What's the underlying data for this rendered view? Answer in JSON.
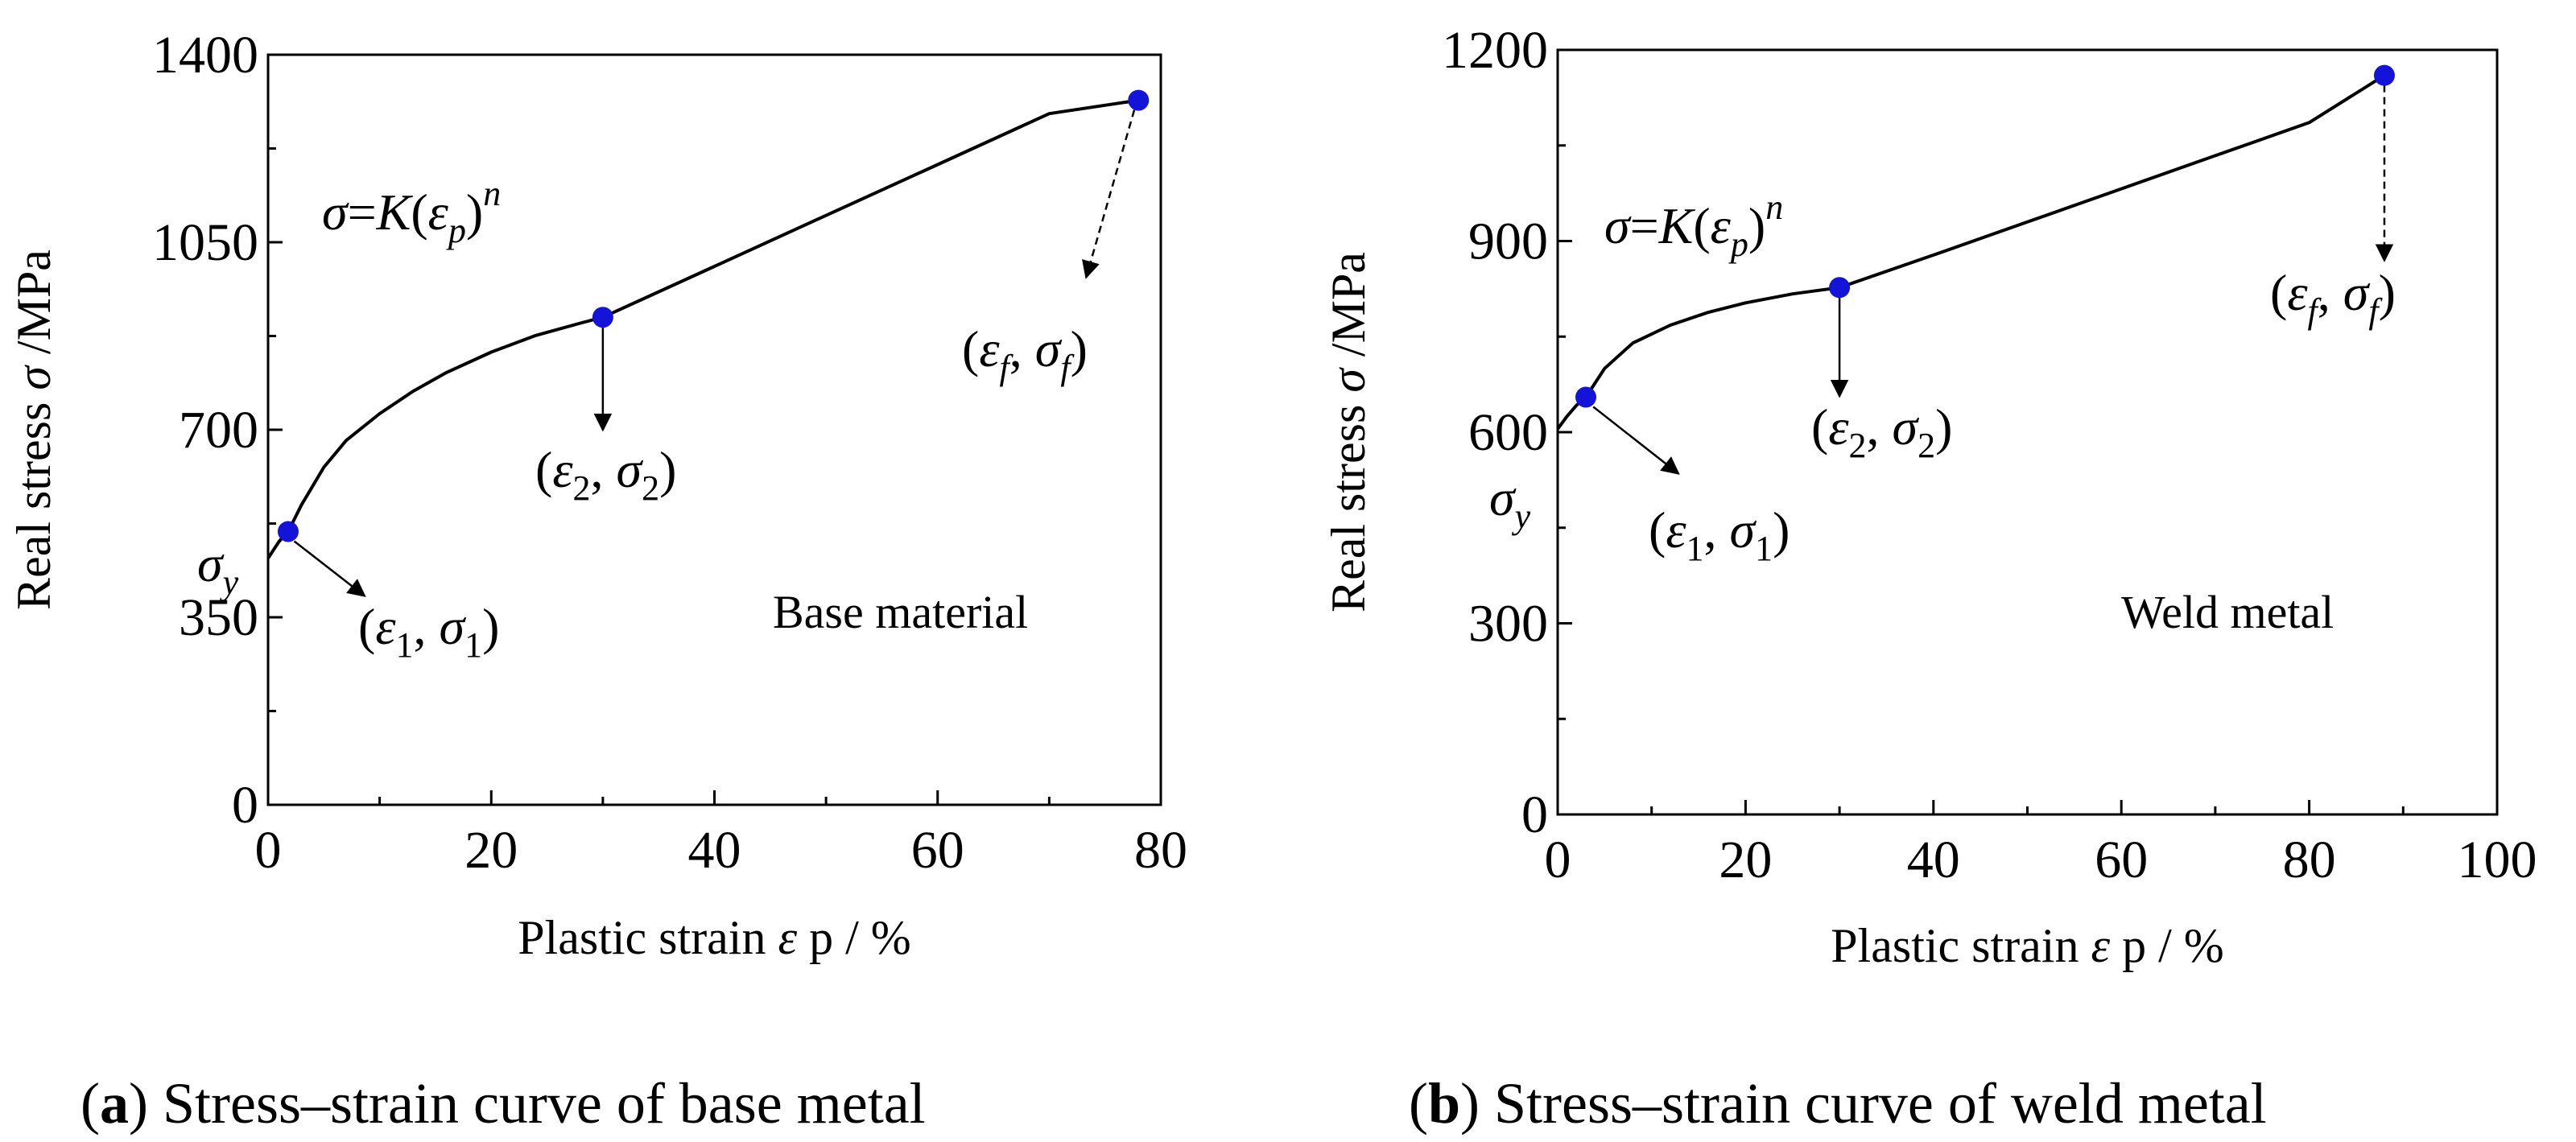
{
  "chart_data": [
    {
      "type": "line",
      "panel": "a",
      "caption_letter": "a",
      "caption_text": ") Stress–strain curve of base metal",
      "xlabel": "Plastic strain",
      "xlabel_symbol": "ε",
      "xlabel_sub": "p",
      "xlabel_unit": " / %",
      "ylabel": "Real stress",
      "ylabel_symbol": "σ",
      "ylabel_unit": " /MPa",
      "xlim": [
        0,
        80
      ],
      "ylim": [
        0,
        1400
      ],
      "xticks": [
        0,
        20,
        40,
        60,
        80
      ],
      "yticks": [
        0,
        350,
        700,
        1050,
        1400
      ],
      "region_label": "Base material",
      "formula": "σ=K(εp)n",
      "curve": {
        "sigma_y": 460,
        "x": [
          0,
          0.5,
          1,
          1.8,
          3,
          5,
          7,
          10,
          13,
          16,
          20,
          24,
          28,
          30,
          40,
          50,
          60,
          70,
          78
        ],
        "y": [
          460,
          476,
          492,
          510,
          560,
          630,
          680,
          730,
          772,
          807,
          845,
          876,
          899,
          910,
          1005,
          1100,
          1195,
          1290,
          1315
        ]
      },
      "points": [
        {
          "name": "p1",
          "label_eps": "ε",
          "label_sig": "σ",
          "sub": "1",
          "x": 1.8,
          "y": 510
        },
        {
          "name": "p2",
          "label_eps": "ε",
          "label_sig": "σ",
          "sub": "2",
          "x": 30,
          "y": 910
        },
        {
          "name": "pf",
          "label_eps": "ε",
          "label_sig": "σ",
          "sub": "f",
          "x": 78,
          "y": 1315
        }
      ],
      "sigma_y_label": "σ",
      "sigma_y_sub": "y"
    },
    {
      "type": "line",
      "panel": "b",
      "caption_letter": "b",
      "caption_text": ") Stress–strain curve of weld metal",
      "xlabel": "Plastic strain",
      "xlabel_symbol": "ε",
      "xlabel_sub": "p",
      "xlabel_unit": " / %",
      "ylabel": "Real stress",
      "ylabel_symbol": "σ",
      "ylabel_unit": " /MPa",
      "xlim": [
        0,
        100
      ],
      "ylim": [
        0,
        1200
      ],
      "xticks": [
        0,
        20,
        40,
        60,
        80,
        100
      ],
      "yticks": [
        0,
        300,
        600,
        900,
        1200
      ],
      "region_label": "Weld metal",
      "formula": "σ=K(εp)n",
      "curve": {
        "sigma_y": 605,
        "x": [
          0,
          1,
          2,
          3,
          5,
          8,
          12,
          16,
          20,
          25,
          30,
          40,
          50,
          60,
          70,
          80,
          88
        ],
        "y": [
          605,
          625,
          642,
          655,
          700,
          740,
          768,
          788,
          803,
          817,
          827,
          878,
          930,
          982,
          1034,
          1086,
          1160
        ]
      },
      "points": [
        {
          "name": "p1",
          "label_eps": "ε",
          "label_sig": "σ",
          "sub": "1",
          "x": 3,
          "y": 655
        },
        {
          "name": "p2",
          "label_eps": "ε",
          "label_sig": "σ",
          "sub": "2",
          "x": 30,
          "y": 827
        },
        {
          "name": "pf",
          "label_eps": "ε",
          "label_sig": "σ",
          "sub": "f",
          "x": 88,
          "y": 1160
        }
      ],
      "sigma_y_label": "σ",
      "sigma_y_sub": "y"
    }
  ]
}
